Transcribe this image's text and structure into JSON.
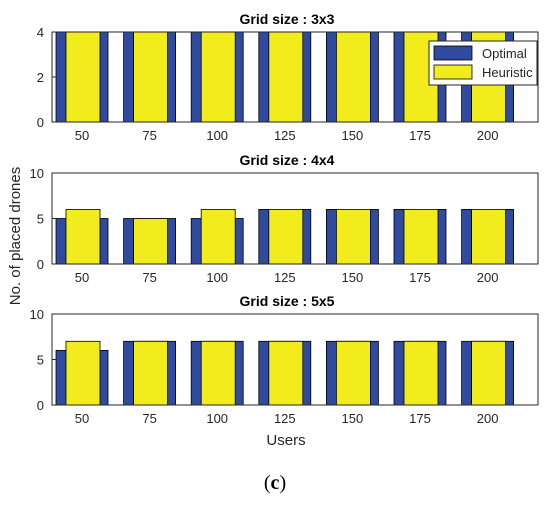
{
  "colors": {
    "optimal": "#2f4a9e",
    "heuristic": "#f2ec1d",
    "axis": "#262626"
  },
  "figure": {
    "ylabel": "No. of placed drones",
    "xlabel": "Users",
    "caption_prefix": "(",
    "caption_letter": "c",
    "caption_suffix": ")"
  },
  "legend": {
    "entries": [
      "Optimal",
      "Heuristic"
    ],
    "placement": "top-right (panel 1)"
  },
  "chart_data": [
    {
      "type": "bar",
      "title": "Grid size : 3x3",
      "categories": [
        "50",
        "75",
        "100",
        "125",
        "150",
        "175",
        "200"
      ],
      "series": [
        {
          "name": "Optimal",
          "values": [
            4,
            4,
            4,
            4,
            4,
            4,
            4
          ]
        },
        {
          "name": "Heuristic",
          "values": [
            4,
            4,
            4,
            4,
            4,
            4,
            4
          ]
        }
      ],
      "ylim": [
        0,
        4
      ],
      "yticks": [
        "0",
        "2",
        "4"
      ]
    },
    {
      "type": "bar",
      "title": "Grid size : 4x4",
      "categories": [
        "50",
        "75",
        "100",
        "125",
        "150",
        "175",
        "200"
      ],
      "series": [
        {
          "name": "Optimal",
          "values": [
            5,
            5,
            5,
            6,
            6,
            6,
            6
          ]
        },
        {
          "name": "Heuristic",
          "values": [
            6,
            5,
            6,
            6,
            6,
            6,
            6
          ]
        }
      ],
      "ylim": [
        0,
        10
      ],
      "yticks": [
        "0",
        "5",
        "10"
      ]
    },
    {
      "type": "bar",
      "title": "Grid size : 5x5",
      "categories": [
        "50",
        "75",
        "100",
        "125",
        "150",
        "175",
        "200"
      ],
      "series": [
        {
          "name": "Optimal",
          "values": [
            6,
            7,
            7,
            7,
            7,
            7,
            7
          ]
        },
        {
          "name": "Heuristic",
          "values": [
            7,
            7,
            7,
            7,
            7,
            7,
            7
          ]
        }
      ],
      "ylim": [
        0,
        10
      ],
      "yticks": [
        "0",
        "5",
        "10"
      ]
    }
  ]
}
